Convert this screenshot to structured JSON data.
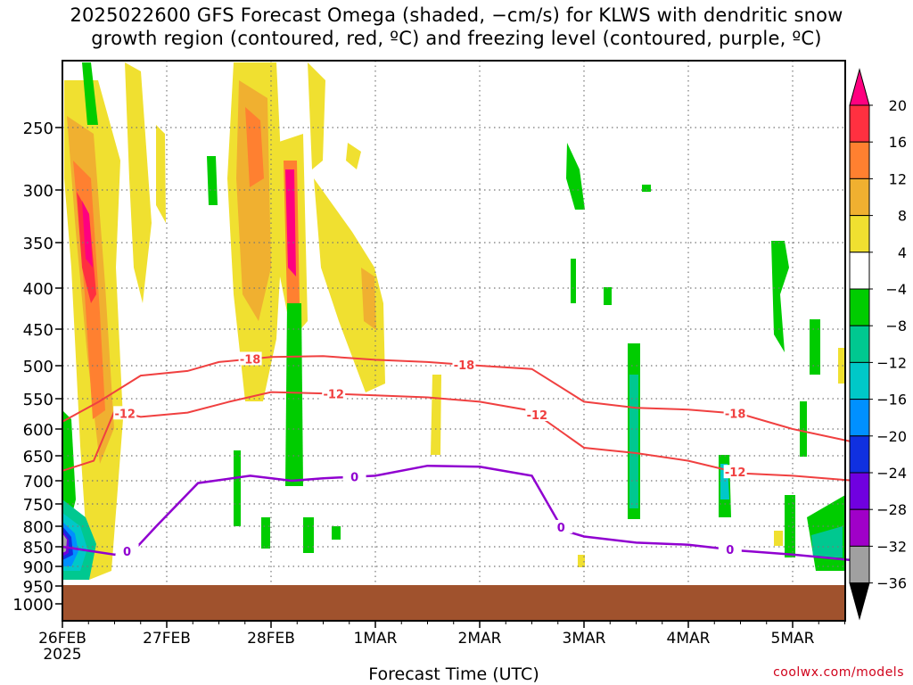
{
  "chart_data": {
    "type": "heatmap",
    "title_lines": [
      "2025022600 GFS Forecast Omega (shaded, −cm/s) for KLWS with dendritic snow",
      "growth region (contoured, red, ºC) and freezing level (contoured, purple, ºC)"
    ],
    "xlabel": "Forecast Time (UTC)",
    "x_ticks": [
      "26FEB",
      "27FEB",
      "28FEB",
      "1MAR",
      "2MAR",
      "3MAR",
      "4MAR",
      "5MAR"
    ],
    "x_first_tick_sub": "2025",
    "y_ticks": [
      250,
      300,
      350,
      400,
      450,
      500,
      550,
      600,
      650,
      700,
      750,
      800,
      850,
      900,
      950,
      1000
    ],
    "y_axis": "pressure (hPa), reversed",
    "x_range_days": [
      0,
      7.6
    ],
    "colorbar": {
      "labels": [
        "20",
        "16",
        "12",
        "8",
        "4",
        "−4",
        "−8",
        "−12",
        "−16",
        "−20",
        "−24",
        "−28",
        "−32",
        "−36"
      ],
      "colors": [
        "#ff0080",
        "#ff3040",
        "#ff8030",
        "#f0b030",
        "#f0e030",
        "#ffffff",
        "#00cc00",
        "#00c890",
        "#00c8c8",
        "#0090ff",
        "#1030e0",
        "#7000e0",
        "#a000c8",
        "#a0a0a0"
      ]
    },
    "contour_labels": {
      "dgz_top": "-18",
      "dgz_bottom": "-12",
      "freezing": "0"
    },
    "dgz_top_series": [
      [
        0.0,
        588
      ],
      [
        0.35,
        555
      ],
      [
        0.75,
        515
      ],
      [
        1.2,
        508
      ],
      [
        1.5,
        495
      ],
      [
        2.0,
        488
      ],
      [
        2.5,
        487
      ],
      [
        3.0,
        492
      ],
      [
        3.5,
        495
      ],
      [
        4.0,
        500
      ],
      [
        4.5,
        505
      ],
      [
        5.0,
        555
      ],
      [
        5.5,
        565
      ],
      [
        6.0,
        568
      ],
      [
        6.5,
        575
      ],
      [
        7.0,
        600
      ],
      [
        7.6,
        625
      ]
    ],
    "dgz_bottom_series": [
      [
        0.0,
        680
      ],
      [
        0.3,
        660
      ],
      [
        0.5,
        570
      ],
      [
        0.75,
        580
      ],
      [
        1.2,
        573
      ],
      [
        1.6,
        555
      ],
      [
        2.0,
        540
      ],
      [
        2.5,
        542
      ],
      [
        3.0,
        545
      ],
      [
        3.5,
        548
      ],
      [
        4.0,
        555
      ],
      [
        4.5,
        570
      ],
      [
        5.0,
        635
      ],
      [
        5.5,
        645
      ],
      [
        6.0,
        660
      ],
      [
        6.5,
        685
      ],
      [
        7.0,
        690
      ],
      [
        7.6,
        700
      ]
    ],
    "freezing_series": [
      [
        0.0,
        850
      ],
      [
        0.5,
        870
      ],
      [
        0.7,
        855
      ],
      [
        0.9,
        800
      ],
      [
        1.3,
        705
      ],
      [
        1.8,
        690
      ],
      [
        2.2,
        700
      ],
      [
        2.5,
        695
      ],
      [
        3.0,
        690
      ],
      [
        3.5,
        670
      ],
      [
        4.0,
        672
      ],
      [
        4.5,
        690
      ],
      [
        4.8,
        810
      ],
      [
        5.0,
        825
      ],
      [
        5.5,
        840
      ],
      [
        6.0,
        845
      ],
      [
        6.5,
        860
      ],
      [
        7.0,
        870
      ],
      [
        7.6,
        885
      ]
    ],
    "ground_level_hpa": 950
  },
  "credit": "coolwx.com/models"
}
